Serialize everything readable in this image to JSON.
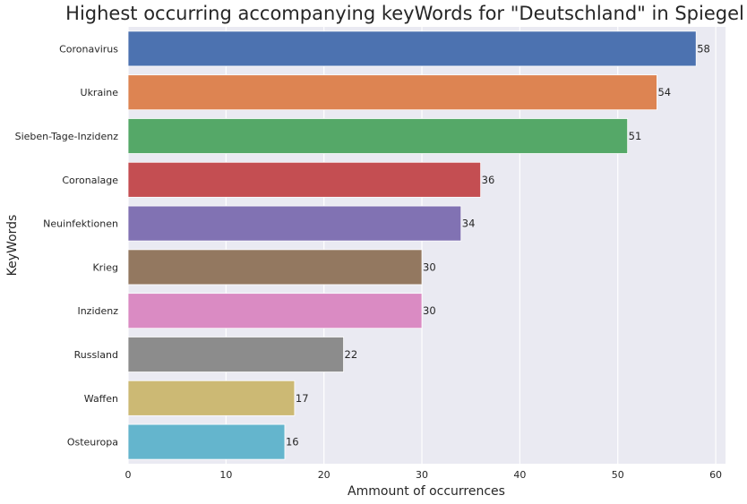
{
  "chart_data": {
    "type": "bar",
    "orientation": "horizontal",
    "title": "Highest occurring accompanying keyWords for \"Deutschland\" in Spiegel",
    "xlabel": "Ammount of occurrences",
    "ylabel": "KeyWords",
    "categories": [
      "Coronavirus",
      "Ukraine",
      "Sieben-Tage-Inzidenz",
      "Coronalage",
      "Neuinfektionen",
      "Krieg",
      "Inzidenz",
      "Russland",
      "Waffen",
      "Osteuropa"
    ],
    "values": [
      58,
      54,
      51,
      36,
      34,
      30,
      30,
      22,
      17,
      16
    ],
    "data_labels": [
      "58",
      "54",
      "51",
      "36",
      "34",
      "30",
      "30",
      "22",
      "17",
      "16"
    ],
    "colors": [
      "#4c72b0",
      "#dd8452",
      "#55a868",
      "#c44e52",
      "#8172b3",
      "#937860",
      "#da8bc3",
      "#8c8c8c",
      "#ccb974",
      "#64b5cd"
    ],
    "xlim": [
      0,
      61
    ],
    "xticks": [
      0,
      10,
      20,
      30,
      40,
      50,
      60
    ],
    "xtick_labels": [
      "0",
      "10",
      "20",
      "30",
      "40",
      "50",
      "60"
    ],
    "grid": true,
    "plot_background": "#eaeaf2",
    "grid_color": "#ffffff"
  }
}
